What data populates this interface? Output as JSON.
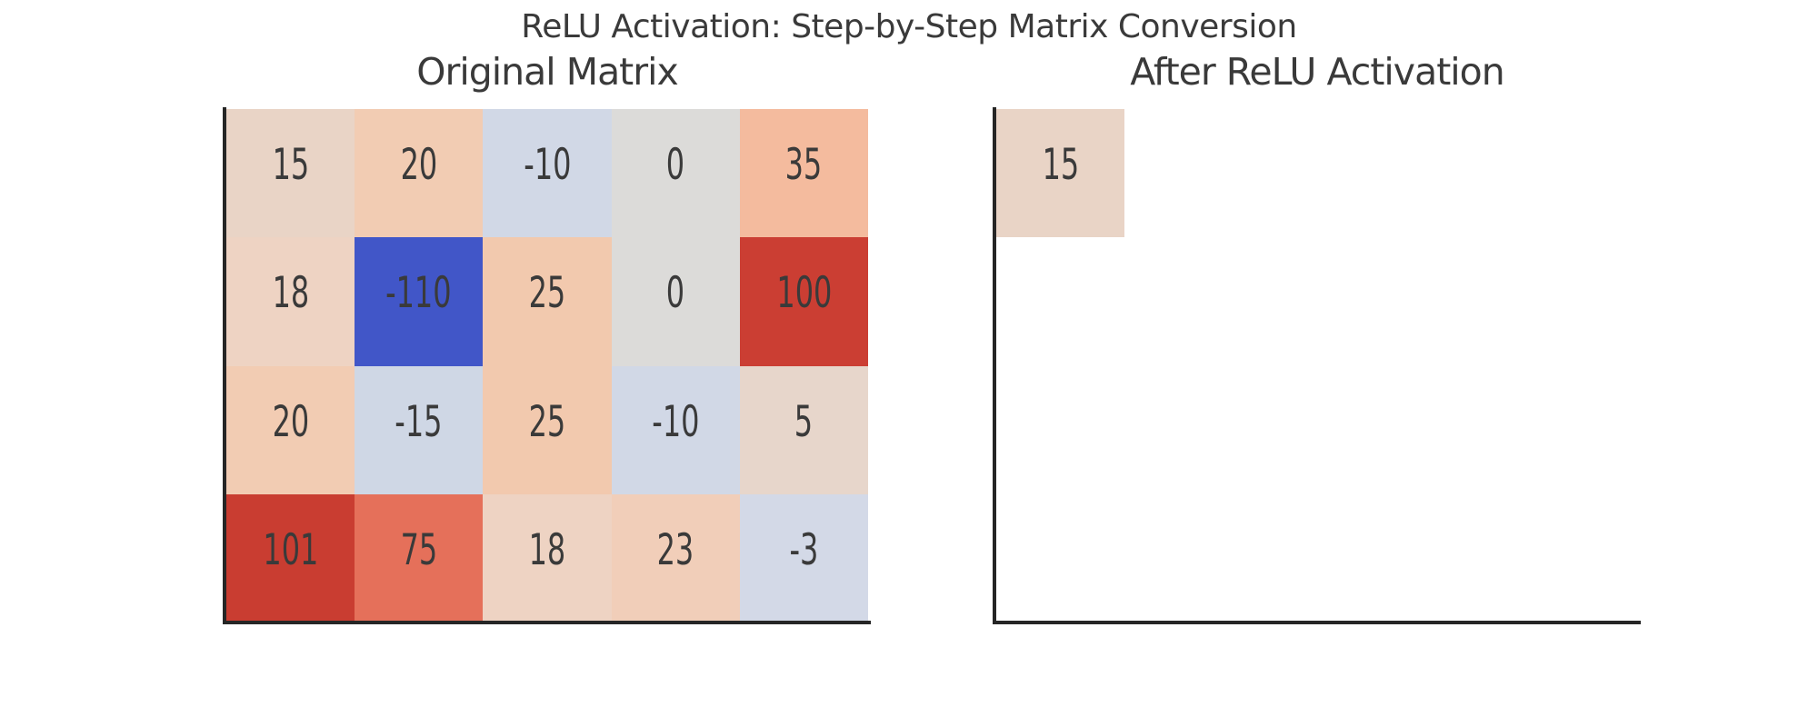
{
  "figure": {
    "suptitle": "ReLU Activation: Step-by-Step Matrix Conversion",
    "background_color": "#ffffff",
    "title_color": "#3a3a3a",
    "spine_color": "#262626"
  },
  "chart_data": [
    {
      "type": "heatmap",
      "title": "Original Matrix",
      "rows": 4,
      "cols": 5,
      "values": [
        [
          15,
          20,
          -10,
          0,
          35
        ],
        [
          18,
          -110,
          25,
          0,
          100
        ],
        [
          20,
          -15,
          25,
          -10,
          5
        ],
        [
          101,
          75,
          18,
          23,
          -3
        ]
      ],
      "cell_colors": [
        [
          "#e9d4c6",
          "#f2ccb3",
          "#d1d8e6",
          "#dcdbd9",
          "#f4bb9e"
        ],
        [
          "#eed3c3",
          "#4156c8",
          "#f2c9ae",
          "#dcdbd9",
          "#cb3e33"
        ],
        [
          "#f2ccb3",
          "#cfd7e5",
          "#f2c9ae",
          "#d1d8e6",
          "#e7d6cb"
        ],
        [
          "#c93d31",
          "#e5705a",
          "#eed3c3",
          "#f1ceb9",
          "#d3d9e7"
        ]
      ],
      "annotation_color": "#3a3a3a",
      "legend": "none",
      "axis_ticks": "none"
    },
    {
      "type": "heatmap",
      "title": "After ReLU Activation",
      "rows": 4,
      "cols": 5,
      "values": [
        [
          15,
          null,
          null,
          null,
          null
        ],
        [
          null,
          null,
          null,
          null,
          null
        ],
        [
          null,
          null,
          null,
          null,
          null
        ],
        [
          null,
          null,
          null,
          null,
          null
        ]
      ],
      "cell_colors": [
        [
          "#e9d4c6",
          null,
          null,
          null,
          null
        ],
        [
          null,
          null,
          null,
          null,
          null
        ],
        [
          null,
          null,
          null,
          null,
          null
        ],
        [
          null,
          null,
          null,
          null,
          null
        ]
      ],
      "annotation_color": "#3a3a3a",
      "legend": "none",
      "axis_ticks": "none"
    }
  ]
}
